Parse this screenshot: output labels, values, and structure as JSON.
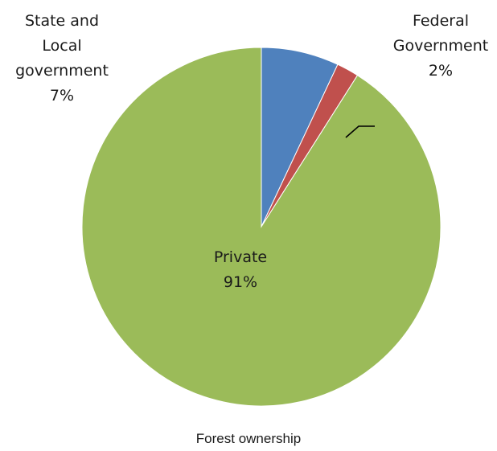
{
  "chart_data": {
    "type": "pie",
    "title": "",
    "caption": "Forest ownership",
    "slices": [
      {
        "label_lines": [
          "State and",
          "Local",
          "government"
        ],
        "value": 7,
        "value_label": "7%",
        "color": "#4F81BD"
      },
      {
        "label_lines": [
          "Federal",
          "Government"
        ],
        "value": 2,
        "value_label": "2%",
        "color": "#C0504D"
      },
      {
        "label_lines": [
          "Private"
        ],
        "value": 91,
        "value_label": "91%",
        "color": "#9BBB59"
      }
    ]
  }
}
